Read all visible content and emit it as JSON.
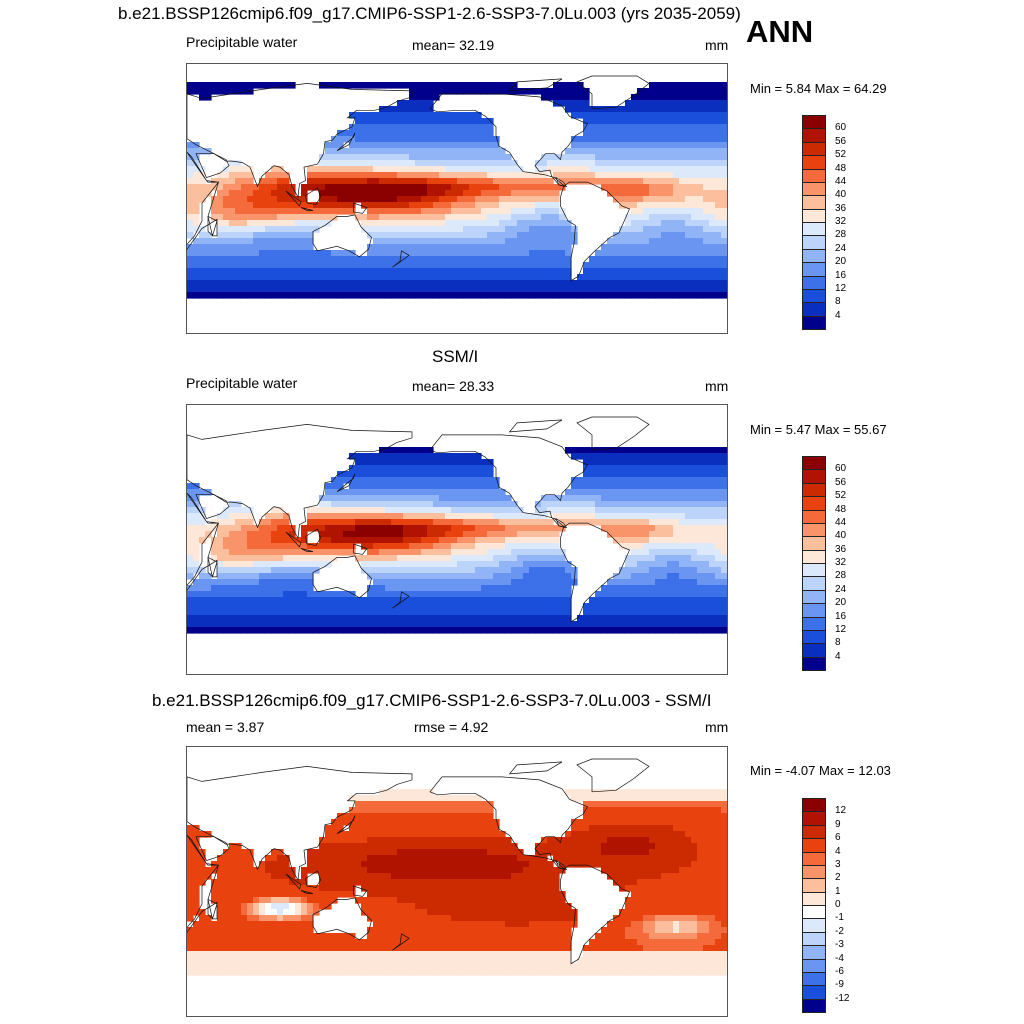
{
  "season": "ANN",
  "panels": [
    {
      "title": "b.e21.BSSP126cmip6.f09_g17.CMIP6-SSP1-2.6-SSP3-7.0Lu.003 (yrs 2035-2059)",
      "left_label": "Precipitable water",
      "center_label": "mean=  32.19",
      "units": "mm",
      "minmax": "Min =   5.84 Max =  64.29",
      "kind": "field",
      "levels": [
        "60",
        "56",
        "52",
        "48",
        "44",
        "40",
        "36",
        "32",
        "28",
        "24",
        "20",
        "16",
        "12",
        "8",
        "4"
      ]
    },
    {
      "title": "SSM/I",
      "left_label": "Precipitable water",
      "center_label": "mean=  28.33",
      "units": "mm",
      "minmax": "Min =   5.47 Max =  55.67",
      "kind": "field",
      "levels": [
        "60",
        "56",
        "52",
        "48",
        "44",
        "40",
        "36",
        "32",
        "28",
        "24",
        "20",
        "16",
        "12",
        "8",
        "4"
      ]
    },
    {
      "title": "b.e21.BSSP126cmip6.f09_g17.CMIP6-SSP1-2.6-SSP3-7.0Lu.003 - SSM/I",
      "left_label": "mean =    3.87",
      "center_label": "rmse =    4.92",
      "units": "mm",
      "minmax": "Min =  -4.07 Max =  12.03",
      "kind": "diff",
      "levels": [
        "12",
        "9",
        "6",
        "4",
        "3",
        "2",
        "1",
        "0",
        "-1",
        "-2",
        "-3",
        "-4",
        "-6",
        "-9",
        "-12"
      ]
    }
  ],
  "colors": {
    "field_scale": [
      "#8b0000",
      "#b01400",
      "#cc2a00",
      "#e8420f",
      "#f46a3a",
      "#f8936a",
      "#fbbf9e",
      "#fde7d8",
      "#dce9fb",
      "#bcd3fa",
      "#91b4f7",
      "#6a96f2",
      "#3d71ea",
      "#1a4fdc",
      "#0a2fbf",
      "#00008c"
    ],
    "diff_scale": [
      "#8b0000",
      "#b01400",
      "#cc2a00",
      "#e8420f",
      "#f46a3a",
      "#f8936a",
      "#fbbf9e",
      "#fde7d8",
      "#ffffff",
      "#dce9fb",
      "#bcd3fa",
      "#91b4f7",
      "#6a96f2",
      "#3d71ea",
      "#1a4fdc",
      "#00008c"
    ]
  }
}
